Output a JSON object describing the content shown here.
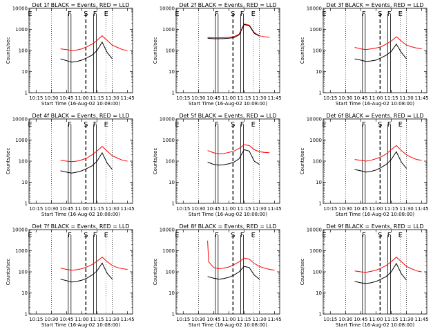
{
  "chart_data": [
    {
      "type": "line",
      "title": "Det 1f BLACK = Events, RED = LLD",
      "xlabel": "Start Time (16-Aug-02 10:08:00)",
      "ylabel": "Counts/sec",
      "xticks": [
        "10:15",
        "10:30",
        "10:45",
        "11:00",
        "11:15",
        "11:30",
        "11:45"
      ],
      "yticks": [
        "1",
        "10",
        "100",
        "1000",
        "10000"
      ],
      "ylim": [
        1,
        10000
      ],
      "yscale": "log",
      "flags": [
        {
          "label": "E",
          "t": "10:09"
        },
        {
          "label": "F",
          "t": "10:48"
        },
        {
          "label": "S",
          "t": "11:04"
        },
        {
          "label": "F",
          "t": "11:13"
        },
        {
          "label": "E",
          "t": "11:24"
        }
      ],
      "series": [
        {
          "name": "RED = LLD",
          "color": "#ff0000",
          "t": [
            "10:39",
            "10:45",
            "10:50",
            "10:55",
            "11:00",
            "11:05",
            "11:10",
            "11:15",
            "11:20",
            "11:25",
            "11:30",
            "11:35",
            "11:40",
            "11:45"
          ],
          "values": [
            120,
            110,
            100,
            105,
            120,
            150,
            200,
            300,
            500,
            300,
            180,
            140,
            110,
            100
          ]
        },
        {
          "name": "BLACK = Events",
          "color": "#000000",
          "t": [
            "10:39",
            "10:45",
            "10:50",
            "10:55",
            "11:00",
            "11:05",
            "11:10",
            "11:15",
            "11:20",
            "11:25",
            "11:30"
          ],
          "values": [
            40,
            33,
            28,
            30,
            35,
            45,
            60,
            100,
            250,
            80,
            40
          ]
        }
      ]
    },
    {
      "type": "line",
      "title": "Det 2f BLACK = Events, RED = LLD",
      "xlabel": "Start Time (16-Aug-02 10:08:00)",
      "ylabel": "Counts/sec",
      "xticks": [
        "10:15",
        "10:30",
        "10:45",
        "11:00",
        "11:15",
        "11:30",
        "11:45"
      ],
      "yticks": [
        "1",
        "10",
        "100",
        "1000",
        "10000"
      ],
      "ylim": [
        1,
        10000
      ],
      "yscale": "log",
      "flags": [
        {
          "label": "E",
          "t": "10:09"
        },
        {
          "label": "F",
          "t": "10:48"
        },
        {
          "label": "S",
          "t": "11:04"
        },
        {
          "label": "F",
          "t": "11:13"
        },
        {
          "label": "E",
          "t": "11:24"
        }
      ],
      "series": [
        {
          "name": "RED = LLD",
          "color": "#ff0000",
          "t": [
            "10:39",
            "10:45",
            "10:50",
            "10:55",
            "11:00",
            "11:05",
            "11:10",
            "11:15",
            "11:20",
            "11:25",
            "11:30",
            "11:35",
            "11:40"
          ],
          "values": [
            420,
            400,
            400,
            410,
            420,
            450,
            600,
            1800,
            1600,
            700,
            500,
            450,
            420
          ]
        },
        {
          "name": "BLACK = Events",
          "color": "#000000",
          "t": [
            "10:39",
            "10:45",
            "10:50",
            "10:55",
            "11:00",
            "11:05",
            "11:10",
            "11:15",
            "11:20",
            "11:25",
            "11:30"
          ],
          "values": [
            380,
            360,
            360,
            370,
            380,
            410,
            550,
            1700,
            1500,
            650,
            480
          ]
        }
      ]
    },
    {
      "type": "line",
      "title": "Det 3f BLACK = Events, RED = LLD",
      "xlabel": "Start Time (16-Aug-02 10:08:00)",
      "ylabel": "Counts/sec",
      "xticks": [
        "10:15",
        "10:30",
        "10:45",
        "11:00",
        "11:15",
        "11:30",
        "11:45"
      ],
      "yticks": [
        "1",
        "10",
        "100",
        "1000",
        "10000"
      ],
      "ylim": [
        1,
        10000
      ],
      "yscale": "log",
      "flags": [
        {
          "label": "E",
          "t": "10:09"
        },
        {
          "label": "F",
          "t": "10:48"
        },
        {
          "label": "S",
          "t": "11:04"
        },
        {
          "label": "F",
          "t": "11:13"
        },
        {
          "label": "E",
          "t": "11:24"
        }
      ],
      "series": [
        {
          "name": "RED = LLD",
          "color": "#ff0000",
          "t": [
            "10:39",
            "10:45",
            "10:50",
            "10:55",
            "11:00",
            "11:05",
            "11:10",
            "11:15",
            "11:20",
            "11:25",
            "11:30",
            "11:35",
            "11:40",
            "11:45"
          ],
          "values": [
            140,
            120,
            110,
            120,
            130,
            150,
            200,
            280,
            450,
            280,
            180,
            150,
            130,
            120
          ]
        },
        {
          "name": "BLACK = Events",
          "color": "#000000",
          "t": [
            "10:39",
            "10:45",
            "10:50",
            "10:55",
            "11:00",
            "11:05",
            "11:10",
            "11:15",
            "11:20",
            "11:25",
            "11:30"
          ],
          "values": [
            40,
            35,
            30,
            32,
            35,
            45,
            60,
            90,
            200,
            80,
            40
          ]
        }
      ]
    },
    {
      "type": "line",
      "title": "Det 4f BLACK = Events, RED = LLD",
      "xlabel": "Start Time (16-Aug-02 10:08:00)",
      "ylabel": "Counts/sec",
      "xticks": [
        "10:15",
        "10:30",
        "10:45",
        "11:00",
        "11:15",
        "11:30",
        "11:45"
      ],
      "yticks": [
        "1",
        "10",
        "100",
        "1000",
        "10000"
      ],
      "ylim": [
        1,
        10000
      ],
      "yscale": "log",
      "flags": [
        {
          "label": "E",
          "t": "10:09"
        },
        {
          "label": "F",
          "t": "10:48"
        },
        {
          "label": "S",
          "t": "11:04"
        },
        {
          "label": "F",
          "t": "11:13"
        },
        {
          "label": "E",
          "t": "11:24"
        }
      ],
      "series": [
        {
          "name": "RED = LLD",
          "color": "#ff0000",
          "t": [
            "10:39",
            "10:45",
            "10:50",
            "10:55",
            "11:00",
            "11:05",
            "11:10",
            "11:15",
            "11:20",
            "11:25",
            "11:30",
            "11:35",
            "11:40",
            "11:45"
          ],
          "values": [
            110,
            100,
            95,
            100,
            115,
            140,
            200,
            300,
            500,
            300,
            180,
            140,
            110,
            100
          ]
        },
        {
          "name": "BLACK = Events",
          "color": "#000000",
          "t": [
            "10:39",
            "10:45",
            "10:50",
            "10:55",
            "11:00",
            "11:05",
            "11:10",
            "11:15",
            "11:20",
            "11:25",
            "11:30"
          ],
          "values": [
            35,
            30,
            27,
            30,
            35,
            45,
            60,
            100,
            250,
            80,
            40
          ]
        }
      ]
    },
    {
      "type": "line",
      "title": "Det 5f BLACK = Events, RED = LLD",
      "xlabel": "Start Time (16-Aug-02 10:08:00)",
      "ylabel": "Counts/sec",
      "xticks": [
        "10:15",
        "10:30",
        "10:45",
        "11:00",
        "11:15",
        "11:30",
        "11:45"
      ],
      "yticks": [
        "1",
        "10",
        "100",
        "1000",
        "10000"
      ],
      "ylim": [
        1,
        10000
      ],
      "yscale": "log",
      "flags": [
        {
          "label": "E",
          "t": "10:09"
        },
        {
          "label": "F",
          "t": "10:48"
        },
        {
          "label": "S",
          "t": "11:04"
        },
        {
          "label": "F",
          "t": "11:13"
        },
        {
          "label": "E",
          "t": "11:24"
        }
      ],
      "series": [
        {
          "name": "RED = LLD",
          "color": "#ff0000",
          "t": [
            "10:39",
            "10:45",
            "10:50",
            "10:55",
            "11:00",
            "11:05",
            "11:10",
            "11:15",
            "11:20",
            "11:25",
            "11:30",
            "11:35",
            "11:40"
          ],
          "values": [
            320,
            250,
            220,
            230,
            260,
            300,
            400,
            600,
            550,
            350,
            280,
            260,
            250
          ]
        },
        {
          "name": "BLACK = Events",
          "color": "#000000",
          "t": [
            "10:39",
            "10:45",
            "10:50",
            "10:55",
            "11:00",
            "11:05",
            "11:10",
            "11:15",
            "11:20",
            "11:25",
            "11:30"
          ],
          "values": [
            90,
            70,
            65,
            68,
            75,
            90,
            130,
            350,
            300,
            100,
            70
          ]
        }
      ]
    },
    {
      "type": "line",
      "title": "Det 6f BLACK = Events, RED = LLD",
      "xlabel": "Start Time (16-Aug-02 10:08:00)",
      "ylabel": "Counts/sec",
      "xticks": [
        "10:15",
        "10:30",
        "10:45",
        "11:00",
        "11:15",
        "11:30",
        "11:45"
      ],
      "yticks": [
        "1",
        "10",
        "100",
        "1000",
        "10000"
      ],
      "ylim": [
        1,
        10000
      ],
      "yscale": "log",
      "flags": [
        {
          "label": "E",
          "t": "10:09"
        },
        {
          "label": "F",
          "t": "10:48"
        },
        {
          "label": "S",
          "t": "11:04"
        },
        {
          "label": "F",
          "t": "11:13"
        },
        {
          "label": "E",
          "t": "11:24"
        }
      ],
      "series": [
        {
          "name": "RED = LLD",
          "color": "#ff0000",
          "t": [
            "10:39",
            "10:45",
            "10:50",
            "10:55",
            "11:00",
            "11:05",
            "11:10",
            "11:15",
            "11:20",
            "11:25",
            "11:30",
            "11:35",
            "11:40",
            "11:45"
          ],
          "values": [
            120,
            110,
            100,
            110,
            130,
            160,
            220,
            350,
            550,
            320,
            200,
            150,
            120,
            110
          ]
        },
        {
          "name": "BLACK = Events",
          "color": "#000000",
          "t": [
            "10:39",
            "10:45",
            "10:50",
            "10:55",
            "11:00",
            "11:05",
            "11:10",
            "11:15",
            "11:20",
            "11:25",
            "11:30"
          ],
          "values": [
            40,
            35,
            30,
            33,
            38,
            50,
            70,
            120,
            280,
            90,
            45
          ]
        }
      ]
    },
    {
      "type": "line",
      "title": "Det 7f BLACK = Events, RED = LLD",
      "xlabel": "Start Time (16-Aug-02 10:08:00)",
      "ylabel": "Counts/sec",
      "xticks": [
        "10:15",
        "10:30",
        "10:45",
        "11:00",
        "11:15",
        "11:30",
        "11:45"
      ],
      "yticks": [
        "1",
        "10",
        "100",
        "1000",
        "10000"
      ],
      "ylim": [
        1,
        10000
      ],
      "yscale": "log",
      "flags": [
        {
          "label": "E",
          "t": "10:09"
        },
        {
          "label": "F",
          "t": "10:48"
        },
        {
          "label": "S",
          "t": "11:04"
        },
        {
          "label": "F",
          "t": "11:13"
        },
        {
          "label": "E",
          "t": "11:24"
        }
      ],
      "series": [
        {
          "name": "RED = LLD",
          "color": "#ff0000",
          "t": [
            "10:39",
            "10:45",
            "10:50",
            "10:55",
            "11:00",
            "11:05",
            "11:10",
            "11:15",
            "11:20",
            "11:25",
            "11:30",
            "11:35",
            "11:40",
            "11:45"
          ],
          "values": [
            150,
            130,
            120,
            125,
            140,
            170,
            220,
            320,
            500,
            300,
            200,
            160,
            140,
            130
          ]
        },
        {
          "name": "BLACK = Events",
          "color": "#000000",
          "t": [
            "10:39",
            "10:45",
            "10:50",
            "10:55",
            "11:00",
            "11:05",
            "11:10",
            "11:15",
            "11:20",
            "11:25",
            "11:30"
          ],
          "values": [
            45,
            38,
            33,
            35,
            40,
            50,
            70,
            110,
            260,
            85,
            45
          ]
        }
      ]
    },
    {
      "type": "line",
      "title": "Det 8f BLACK = Events, RED = LLD",
      "xlabel": "Start Time (16-Aug-02 10:08:00)",
      "ylabel": "Counts/sec",
      "xticks": [
        "10:15",
        "10:30",
        "10:45",
        "11:00",
        "11:15",
        "11:30",
        "11:45"
      ],
      "yticks": [
        "1",
        "10",
        "100",
        "1000",
        "10000"
      ],
      "ylim": [
        1,
        10000
      ],
      "yscale": "log",
      "flags": [
        {
          "label": "E",
          "t": "10:09"
        },
        {
          "label": "F",
          "t": "10:48"
        },
        {
          "label": "S",
          "t": "11:04"
        },
        {
          "label": "F",
          "t": "11:13"
        },
        {
          "label": "E",
          "t": "11:24"
        }
      ],
      "series": [
        {
          "name": "RED = LLD",
          "color": "#ff0000",
          "t": [
            "10:39",
            "10:40",
            "10:45",
            "10:50",
            "10:55",
            "11:00",
            "11:05",
            "11:10",
            "11:15",
            "11:20",
            "11:25",
            "11:30",
            "11:35",
            "11:40",
            "11:45"
          ],
          "values": [
            3000,
            300,
            160,
            140,
            150,
            170,
            220,
            300,
            450,
            400,
            250,
            180,
            150,
            130,
            120
          ]
        },
        {
          "name": "BLACK = Events",
          "color": "#000000",
          "t": [
            "10:39",
            "10:45",
            "10:50",
            "10:55",
            "11:00",
            "11:05",
            "11:10",
            "11:15",
            "11:20",
            "11:25",
            "11:30"
          ],
          "values": [
            60,
            50,
            45,
            48,
            55,
            70,
            100,
            180,
            160,
            70,
            45
          ]
        }
      ]
    },
    {
      "type": "line",
      "title": "Det 9f BLACK = Events, RED = LLD",
      "xlabel": "Start Time (16-Aug-02 10:08:00)",
      "ylabel": "Counts/sec",
      "xticks": [
        "10:15",
        "10:30",
        "10:45",
        "11:00",
        "11:15",
        "11:30",
        "11:45"
      ],
      "yticks": [
        "1",
        "10",
        "100",
        "1000",
        "10000"
      ],
      "ylim": [
        1,
        10000
      ],
      "yscale": "log",
      "flags": [
        {
          "label": "E",
          "t": "10:09"
        },
        {
          "label": "F",
          "t": "10:48"
        },
        {
          "label": "S",
          "t": "11:04"
        },
        {
          "label": "F",
          "t": "11:13"
        },
        {
          "label": "E",
          "t": "11:24"
        }
      ],
      "series": [
        {
          "name": "RED = LLD",
          "color": "#ff0000",
          "t": [
            "10:39",
            "10:45",
            "10:50",
            "10:55",
            "11:00",
            "11:05",
            "11:10",
            "11:15",
            "11:20",
            "11:25",
            "11:30",
            "11:35",
            "11:40",
            "11:45"
          ],
          "values": [
            110,
            100,
            95,
            105,
            120,
            150,
            200,
            300,
            500,
            300,
            180,
            140,
            110,
            100
          ]
        },
        {
          "name": "BLACK = Events",
          "color": "#000000",
          "t": [
            "10:39",
            "10:45",
            "10:50",
            "10:55",
            "11:00",
            "11:05",
            "11:10",
            "11:15",
            "11:20",
            "11:25",
            "11:30"
          ],
          "values": [
            35,
            30,
            28,
            30,
            35,
            45,
            60,
            100,
            250,
            80,
            40
          ]
        }
      ]
    }
  ]
}
